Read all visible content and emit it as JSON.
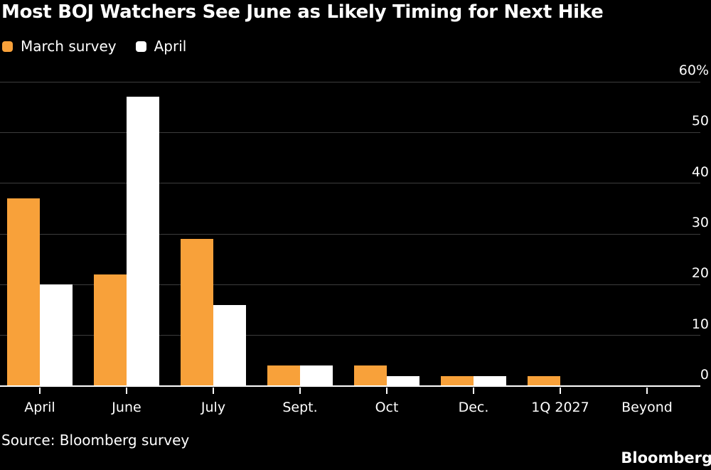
{
  "title": "Most BOJ Watchers See June as Likely Timing for Next Hike",
  "legend": [
    {
      "label": "March survey",
      "color": "#F8A13A"
    },
    {
      "label": "April",
      "color": "#FFFFFF"
    }
  ],
  "source": "Source: Bloomberg survey",
  "brand": "Bloomberg",
  "colors": {
    "background": "#000000",
    "march_survey_bar": "#F8A13A",
    "april_bar": "#FFFFFF",
    "gridline": "#3D3D3D",
    "axis": "#FFFFFF",
    "text": "#FFFFFF"
  },
  "chart_data": {
    "type": "bar",
    "title": "Most BOJ Watchers See June as Likely Timing for Next Hike",
    "categories": [
      "April",
      "June",
      "July",
      "Sept.",
      "Oct",
      "Dec.",
      "1Q 2027",
      "Beyond"
    ],
    "series": [
      {
        "name": "March survey",
        "color": "#F8A13A",
        "values": [
          37,
          22,
          29,
          4,
          4,
          2,
          2,
          0
        ]
      },
      {
        "name": "April",
        "color": "#FFFFFF",
        "values": [
          20,
          57,
          16,
          4,
          2,
          2,
          0,
          0
        ]
      }
    ],
    "xlabel": "",
    "ylabel": "",
    "ylim": [
      0,
      60
    ],
    "y_ticks": [
      {
        "value": 0,
        "label": "0"
      },
      {
        "value": 10,
        "label": "10"
      },
      {
        "value": 20,
        "label": "20"
      },
      {
        "value": 30,
        "label": "30"
      },
      {
        "value": 40,
        "label": "40"
      },
      {
        "value": 50,
        "label": "50"
      },
      {
        "value": 60,
        "label": "60%"
      }
    ],
    "grid": true,
    "legend_position": "top-left",
    "y_axis_side": "right"
  }
}
